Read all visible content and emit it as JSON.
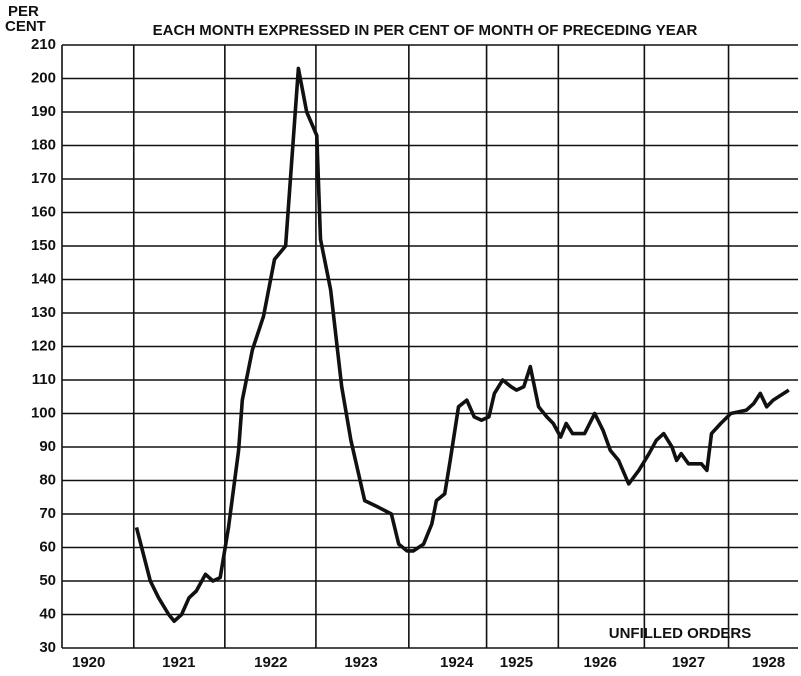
{
  "chart_data": {
    "type": "line",
    "title": "EACH MONTH EXPRESSED IN PER CENT OF MONTH OF PRECEDING YEAR",
    "y_label": [
      "PER",
      "CENT"
    ],
    "annotation": "UNFILLED ORDERS",
    "baseline": 100,
    "grid": true,
    "color": "#111111",
    "xlim": [
      1920.2,
      1928.2
    ],
    "ylim": [
      30,
      210
    ],
    "yticks": [
      30,
      40,
      50,
      60,
      70,
      80,
      90,
      100,
      110,
      120,
      130,
      140,
      150,
      160,
      170,
      180,
      190,
      200,
      210
    ],
    "xticks": [
      {
        "value": 1920.49,
        "label": "1920"
      },
      {
        "value": 1921.47,
        "label": "1921"
      },
      {
        "value": 1922.47,
        "label": "1922"
      },
      {
        "value": 1923.45,
        "label": "1923"
      },
      {
        "value": 1924.49,
        "label": "1924"
      },
      {
        "value": 1925.14,
        "label": "1925"
      },
      {
        "value": 1926.05,
        "label": "1926"
      },
      {
        "value": 1927.01,
        "label": "1927"
      },
      {
        "value": 1927.88,
        "label": "1928"
      }
    ],
    "series": [
      {
        "name": "UNFILLED ORDERS",
        "color": "#111111",
        "x": [
          1921.01,
          1921.16,
          1921.25,
          1921.36,
          1921.42,
          1921.5,
          1921.58,
          1921.66,
          1921.76,
          1921.84,
          1921.92,
          1922.01,
          1922.12,
          1922.16,
          1922.27,
          1922.39,
          1922.51,
          1922.63,
          1922.77,
          1922.86,
          1922.97,
          1923.01,
          1923.12,
          1923.24,
          1923.34,
          1923.49,
          1923.64,
          1923.78,
          1923.86,
          1923.95,
          1924.02,
          1924.13,
          1924.22,
          1924.27,
          1924.36,
          1924.42,
          1924.51,
          1924.6,
          1924.68,
          1924.76,
          1924.84,
          1924.9,
          1924.99,
          1925.08,
          1925.14,
          1925.22,
          1925.29,
          1925.38,
          1925.47,
          1925.54,
          1925.62,
          1925.68,
          1925.75,
          1925.88,
          1925.99,
          1926.08,
          1926.16,
          1926.25,
          1926.36,
          1926.47,
          1926.58,
          1926.66,
          1926.74,
          1926.83,
          1926.88,
          1926.93,
          1927.01,
          1927.15,
          1927.21,
          1927.26,
          1927.36,
          1927.47,
          1927.64,
          1927.72,
          1927.79,
          1927.86,
          1927.93,
          1928.1
        ],
        "values": [
          66,
          50,
          45,
          40,
          38,
          40,
          45,
          47,
          52,
          50,
          51,
          66,
          89,
          104,
          119,
          129,
          146,
          150,
          203,
          190,
          183,
          152,
          137,
          108,
          92,
          74,
          72,
          70,
          61,
          59,
          59,
          61,
          67,
          74,
          76,
          86,
          102,
          104,
          99,
          98,
          99,
          106,
          110,
          108,
          107,
          108,
          114,
          102,
          99,
          97,
          93,
          97,
          94,
          94,
          100,
          95,
          89,
          86,
          79,
          83,
          88,
          92,
          94,
          90,
          86,
          88,
          85,
          85,
          83,
          94,
          97,
          100,
          101,
          103,
          106,
          102,
          104,
          107
        ]
      }
    ]
  }
}
